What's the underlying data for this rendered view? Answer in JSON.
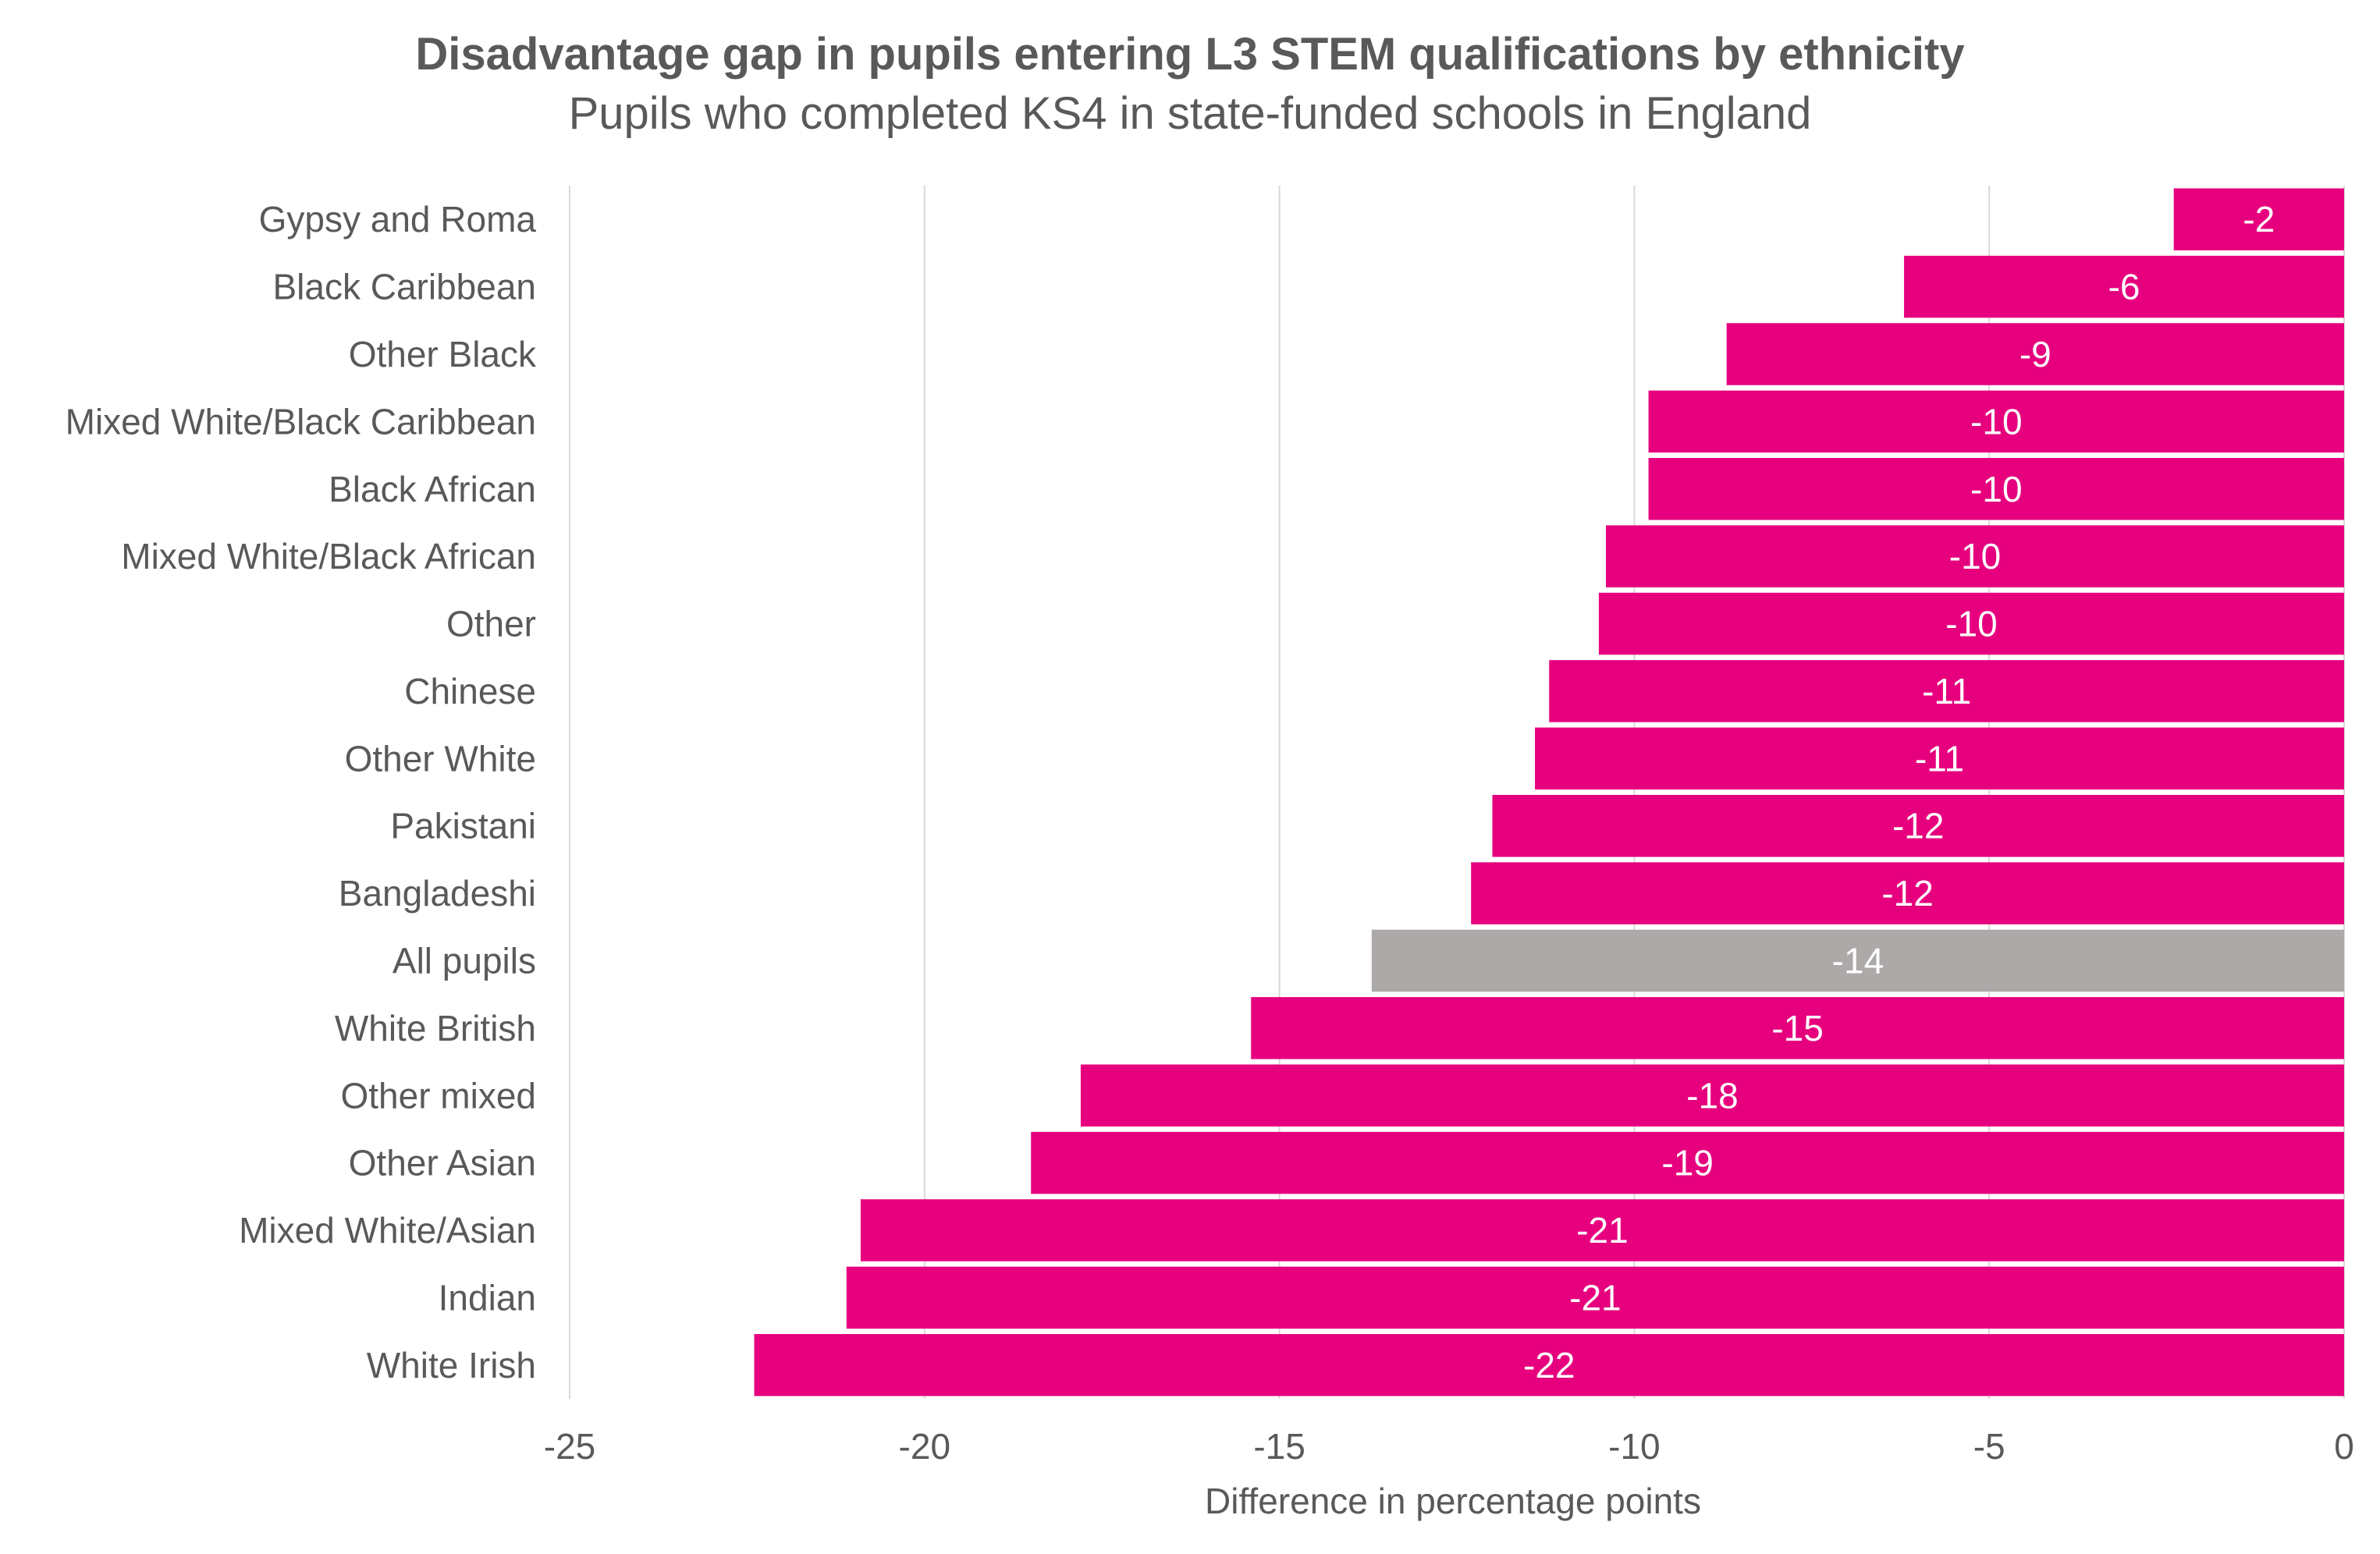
{
  "chart_data": {
    "type": "bar",
    "orientation": "horizontal",
    "title": "Disadvantage gap in pupils entering L3 STEM qualifications by ethnicity",
    "subtitle": "Pupils who completed KS4 in state-funded schools in England",
    "xlabel": "Difference in percentage points",
    "ylabel": "",
    "xlim": [
      -25,
      0
    ],
    "xticks": [
      -25,
      -20,
      -15,
      -10,
      -5,
      0
    ],
    "grid": "vertical",
    "legend": "none",
    "colors": {
      "default": "#E6007E",
      "highlight": "#ADA9A8",
      "label": "#FFFFFF",
      "axis_text": "#595959",
      "grid": "#D9D9D9"
    },
    "categories": [
      "Gypsy and Roma",
      "Black Caribbean",
      "Other Black",
      "Mixed White/Black Caribbean",
      "Black African",
      "Mixed White/Black African",
      "Other",
      "Chinese",
      "Other White",
      "Pakistani",
      "Bangladeshi",
      "All pupils",
      "White British",
      "Other mixed",
      "Other Asian",
      "Mixed White/Asian",
      "Indian",
      "White Irish"
    ],
    "values": [
      -2.4,
      -6.2,
      -8.7,
      -9.8,
      -9.8,
      -10.4,
      -10.5,
      -11.2,
      -11.4,
      -12.0,
      -12.3,
      -13.7,
      -15.4,
      -17.8,
      -18.5,
      -20.9,
      -21.1,
      -22.4
    ],
    "data_labels": [
      "-2",
      "-6",
      "-9",
      "-10",
      "-10",
      "-10",
      "-10",
      "-11",
      "-11",
      "-12",
      "-12",
      "-14",
      "-15",
      "-18",
      "-19",
      "-21",
      "-21",
      "-22"
    ],
    "highlight_categories": [
      "All pupils"
    ]
  }
}
